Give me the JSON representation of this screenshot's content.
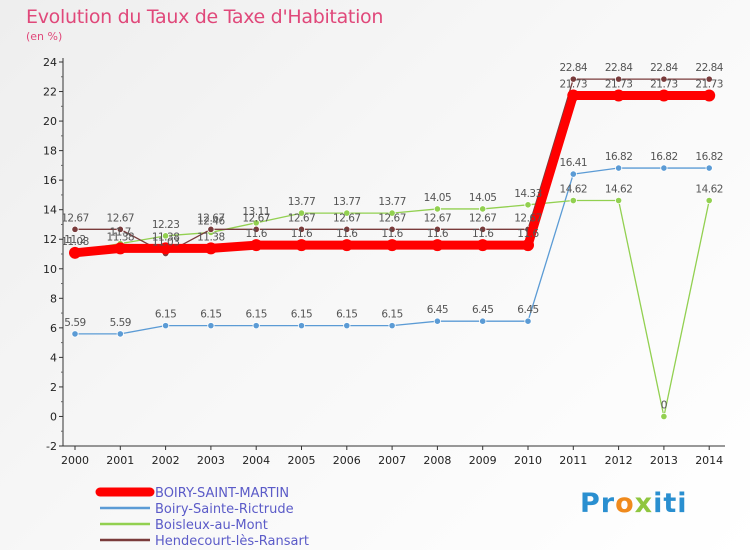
{
  "chart_data": {
    "type": "line",
    "title": "Evolution du Taux de Taxe d'Habitation",
    "subtitle": "(en %)",
    "xlabel": "",
    "ylabel": "",
    "ylim": [
      -2,
      24
    ],
    "yticks": [
      -2,
      0,
      2,
      4,
      6,
      8,
      10,
      12,
      14,
      16,
      18,
      20,
      22,
      24
    ],
    "categories": [
      "2000",
      "2001",
      "2002",
      "2003",
      "2004",
      "2005",
      "2006",
      "2007",
      "2008",
      "2009",
      "2010",
      "2011",
      "2012",
      "2013",
      "2014"
    ],
    "grid": false,
    "legend_position": "bottom-left",
    "series": [
      {
        "name": "BOIRY-SAINT-MARTIN",
        "color": "#ff0000",
        "values": [
          11.08,
          11.38,
          11.38,
          11.38,
          11.6,
          11.6,
          11.6,
          11.6,
          11.6,
          11.6,
          11.6,
          21.73,
          21.73,
          21.73,
          21.73
        ],
        "labels": [
          "11.08",
          "11.38",
          "11.38",
          "11.38",
          "11.6",
          "11.6",
          "11.6",
          "11.6",
          "11.6",
          "11.6",
          "11.6",
          "21.73",
          "21.73",
          "21.73",
          "21.73"
        ]
      },
      {
        "name": "Boiry-Sainte-Rictrude",
        "color": "#5b9bd5",
        "values": [
          5.59,
          5.59,
          6.15,
          6.15,
          6.15,
          6.15,
          6.15,
          6.15,
          6.45,
          6.45,
          6.45,
          16.41,
          16.82,
          16.82,
          16.82
        ],
        "labels": [
          "5.59",
          "5.59",
          "6.15",
          "6.15",
          "6.15",
          "6.15",
          "6.15",
          "6.15",
          "6.45",
          "6.45",
          "6.45",
          "16.41",
          "16.82",
          "16.82",
          "16.82"
        ]
      },
      {
        "name": "Boisleux-au-Mont",
        "color": "#92d050",
        "values": [
          11.2,
          11.7,
          12.23,
          12.46,
          13.11,
          13.77,
          13.77,
          13.77,
          14.05,
          14.05,
          14.33,
          14.62,
          14.62,
          0,
          14.62
        ],
        "labels": [
          "11.2",
          "11.7",
          "12.23",
          "12.46",
          "13.11",
          "13.77",
          "13.77",
          "13.77",
          "14.05",
          "14.05",
          "14.33",
          "14.62",
          "14.62",
          "0",
          "14.62"
        ]
      },
      {
        "name": "Hendecourt-lès-Ransart",
        "color": "#7a3b3b",
        "values": [
          12.67,
          12.67,
          11.03,
          12.67,
          12.67,
          12.67,
          12.67,
          12.67,
          12.67,
          12.67,
          12.67,
          22.84,
          22.84,
          22.84,
          22.84
        ],
        "labels": [
          "12.67",
          "12.67",
          "11.03",
          "12.67",
          "12.67",
          "12.67",
          "12.67",
          "12.67",
          "12.67",
          "12.67",
          "12.67",
          "22.84",
          "22.84",
          "22.84",
          "22.84"
        ]
      }
    ]
  },
  "legend": {
    "items": [
      {
        "label": "BOIRY-SAINT-MARTIN",
        "color": "#ff0000",
        "thick": true
      },
      {
        "label": "Boiry-Sainte-Rictrude",
        "color": "#5b9bd5",
        "thick": false
      },
      {
        "label": "Boisleux-au-Mont",
        "color": "#92d050",
        "thick": false
      },
      {
        "label": "Hendecourt-lès-Ransart",
        "color": "#7a3b3b",
        "thick": false
      }
    ]
  },
  "logo": {
    "p1": "Pr",
    "o": "o",
    "x": "x",
    "i": "iti"
  }
}
